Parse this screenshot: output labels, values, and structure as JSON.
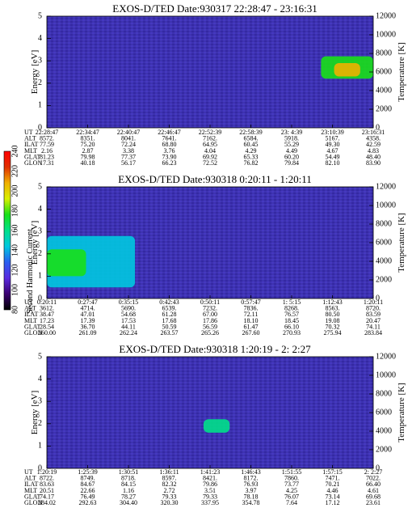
{
  "colorbar": {
    "label": "Second Harmonic Current",
    "ticks": [
      "80",
      "100",
      "120",
      "140",
      "160",
      "180",
      "200",
      "220",
      "240"
    ],
    "colors": [
      "#000000",
      "#3a0070",
      "#5a2ae0",
      "#2a5ef0",
      "#00c8e0",
      "#00e08a",
      "#18e018",
      "#d8f000",
      "#f0b000",
      "#e03000",
      "#ff0000"
    ]
  },
  "chart_data": [
    {
      "type": "heatmap",
      "title": "EXOS-D/TED   Date:930317  22:28:47 - 23:16:31",
      "ylabel": "Energy [eV]",
      "y2label": "Temperature [K]",
      "ylim": [
        0,
        5
      ],
      "y2lim": [
        0,
        12000
      ],
      "yticks": [
        "0",
        "1",
        "2",
        "3",
        "4",
        "5"
      ],
      "y2ticks": [
        "0",
        "2000",
        "4000",
        "6000",
        "8000",
        "10000",
        "12000"
      ],
      "row_labels": [
        "UT",
        "ALT",
        "ILAT",
        "MLT",
        "GLAT",
        "GLON"
      ],
      "columns": [
        [
          "22:28:47",
          "8572.",
          "77.59",
          "2.16",
          "81.23",
          "17.31"
        ],
        [
          "22:34:47",
          "8351.",
          "75.20",
          "2.87",
          "79.98",
          "40.18"
        ],
        [
          "22:40:47",
          "8041.",
          "72.24",
          "3.38",
          "77.37",
          "56.17"
        ],
        [
          "22:46:47",
          "7641.",
          "68.80",
          "3.76",
          "73.90",
          "66.23"
        ],
        [
          "22:52:39",
          "7162.",
          "64.95",
          "4.04",
          "69.92",
          "72.52"
        ],
        [
          "22:58:39",
          "6584.",
          "60.45",
          "4.29",
          "65.33",
          "76.82"
        ],
        [
          "23: 4:39",
          "5918.",
          "55.29",
          "4.49",
          "60.20",
          "79.84"
        ],
        [
          "23:10:39",
          "5167.",
          "49.30",
          "4.67",
          "54.49",
          "82.10"
        ],
        [
          "23:16:31",
          "4358.",
          "42.59",
          "4.83",
          "48.40",
          "83.90"
        ]
      ],
      "features": [
        {
          "x": [
            0.84,
            1.0
          ],
          "y": [
            2.2,
            3.2
          ],
          "level": 180
        },
        {
          "x": [
            0.88,
            0.96
          ],
          "y": [
            2.3,
            2.9
          ],
          "level": 200
        }
      ]
    },
    {
      "type": "heatmap",
      "title": "EXOS-D/TED   Date:930318   0:20:11 - 1:20:11",
      "ylabel": "Energy [eV]",
      "y2label": "Temperature [K]",
      "ylim": [
        0,
        5
      ],
      "y2lim": [
        0,
        12000
      ],
      "yticks": [
        "0",
        "1",
        "2",
        "3",
        "4",
        "5"
      ],
      "y2ticks": [
        "0",
        "2000",
        "4000",
        "6000",
        "8000",
        "10000",
        "12000"
      ],
      "row_labels": [
        "UT",
        "ALT",
        "ILAT",
        "MLT",
        "GLAT",
        "GLON"
      ],
      "columns": [
        [
          "0:20:11",
          "3612.",
          "38.47",
          "17.23",
          "28.54",
          "260.00"
        ],
        [
          "0:27:47",
          "4714.",
          "47.01",
          "17.39",
          "36.70",
          "261.09"
        ],
        [
          "0:35:15",
          "5690.",
          "54.68",
          "17.53",
          "44.11",
          "262.24"
        ],
        [
          "0:42:43",
          "6539.",
          "61.28",
          "17.68",
          "50.59",
          "263.57"
        ],
        [
          "0:50:11",
          "7232.",
          "67.00",
          "17.86",
          "56.59",
          "265.26"
        ],
        [
          "0:57:47",
          "7836.",
          "72.11",
          "18.10",
          "61.47",
          "267.60"
        ],
        [
          "1: 5:15",
          "8268.",
          "76.57",
          "18.45",
          "66.10",
          "270.93"
        ],
        [
          "1:12:43",
          "8563.",
          "80.50",
          "19.08",
          "70.32",
          "275.94"
        ],
        [
          "1:20:11",
          "8720.",
          "83.59",
          "20.47",
          "74.11",
          "283.84"
        ]
      ],
      "features": [
        {
          "x": [
            0.0,
            0.27
          ],
          "y": [
            0.5,
            2.8
          ],
          "level": 150
        },
        {
          "x": [
            0.0,
            0.12
          ],
          "y": [
            1.0,
            2.2
          ],
          "level": 180
        }
      ]
    },
    {
      "type": "heatmap",
      "title": "EXOS-D/TED   Date:930318   1:20:19 - 2: 2:27",
      "ylabel": "Energy [eV]",
      "y2label": "Temperature [K]",
      "ylim": [
        0,
        5
      ],
      "y2lim": [
        0,
        12000
      ],
      "yticks": [
        "0",
        "1",
        "2",
        "3",
        "4",
        "5"
      ],
      "y2ticks": [
        "0",
        "2000",
        "4000",
        "6000",
        "8000",
        "10000",
        "12000"
      ],
      "row_labels": [
        "UT",
        "ALT",
        "ILAT",
        "MLT",
        "GLAT",
        "GLON"
      ],
      "columns": [
        [
          "1:20:19",
          "8722.",
          "83.63",
          "20.51",
          "74.17",
          "284.02"
        ],
        [
          "1:25:39",
          "8749.",
          "84.67",
          "22.66",
          "76.49",
          "292.63"
        ],
        [
          "1:30:51",
          "8718.",
          "84.15",
          "1.16",
          "78.27",
          "304.40"
        ],
        [
          "1:36:11",
          "8597.",
          "82.32",
          "2.72",
          "79.33",
          "320.30"
        ],
        [
          "1:41:23",
          "8421.",
          "79.86",
          "3.51",
          "79.33",
          "337.95"
        ],
        [
          "1:46:43",
          "8172.",
          "76.93",
          "3.97",
          "78.18",
          "354.78"
        ],
        [
          "1:51:55",
          "7860.",
          "73.77",
          "4.25",
          "76.07",
          "7.64"
        ],
        [
          "1:57:15",
          "7471.",
          "70.21",
          "4.46",
          "73.14",
          "17.12"
        ],
        [
          "2: 2:27",
          "7022.",
          "66.40",
          "4.61",
          "69.68",
          "23.61"
        ]
      ],
      "features": [
        {
          "x": [
            0.48,
            0.56
          ],
          "y": [
            1.6,
            2.2
          ],
          "level": 160
        }
      ]
    }
  ]
}
